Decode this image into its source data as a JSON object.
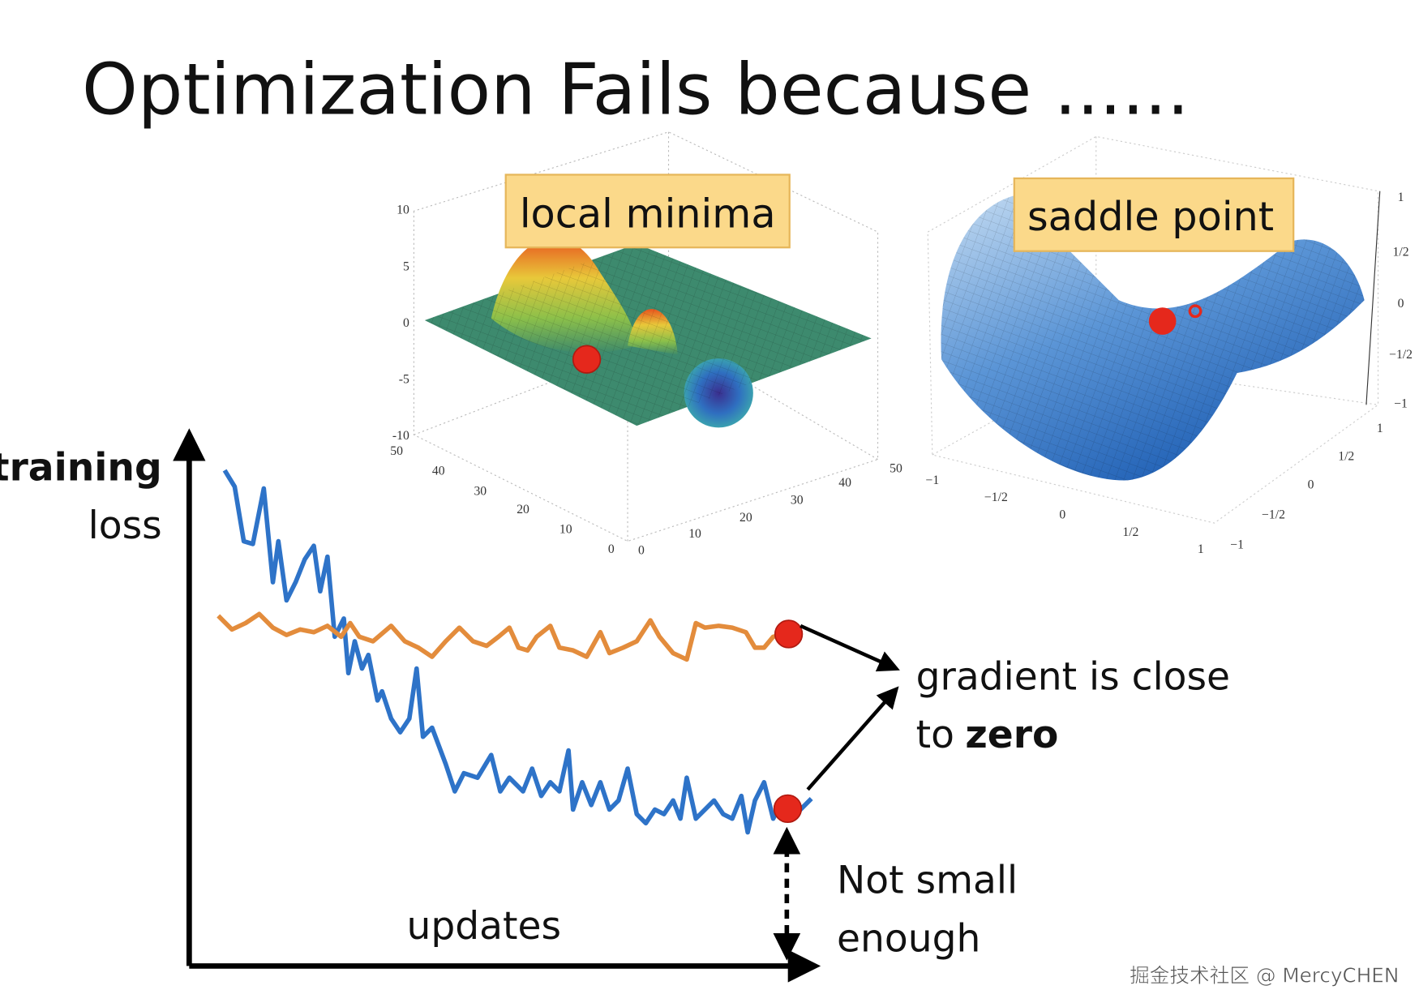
{
  "title": "Optimization Fails because ......",
  "figures": {
    "local_minima": {
      "label": "local minima",
      "z_ticks": [
        "10",
        "5",
        "0",
        "-5",
        "-10"
      ],
      "y_ticks": [
        "50",
        "40",
        "30",
        "20",
        "10",
        "0"
      ],
      "x_ticks": [
        "0",
        "10",
        "20",
        "30",
        "40",
        "50"
      ]
    },
    "saddle_point": {
      "label": "saddle point",
      "z_ticks": [
        "1",
        "1/2",
        "0",
        "−1/2",
        "−1"
      ],
      "x_ticks": [
        "−1",
        "−1/2",
        "0",
        "1/2",
        "1"
      ],
      "y_ticks": [
        "1",
        "1/2",
        "0",
        "−1/2",
        "−1"
      ]
    }
  },
  "plot": {
    "y_axis_label": [
      "training",
      "loss"
    ],
    "x_axis_label": "updates"
  },
  "annotations": {
    "gradient": {
      "line1": "gradient is close",
      "line2_prefix": "to",
      "line2_bold": "zero"
    },
    "not_small": [
      "Not small",
      "enough"
    ]
  },
  "watermark": "掘金技术社区 @ MercyCHEN"
}
